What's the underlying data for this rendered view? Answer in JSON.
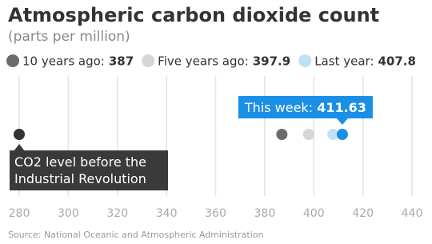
{
  "chart_data": {
    "type": "dot",
    "title": "Atmospheric carbon dioxide count",
    "subtitle": "(parts per million)",
    "source": "Source: National Oceanic and Atmospheric Administration",
    "series": [
      {
        "name": "10 years ago:",
        "color": "#6b6b6b",
        "values": [
          387
        ]
      },
      {
        "name": "Five years ago:",
        "color": "#d6d6d6",
        "values": [
          397.9
        ]
      },
      {
        "name": "Last year:",
        "color": "#bfe1f8",
        "values": [
          407.8
        ]
      }
    ],
    "highlight": {
      "name": "This week:",
      "color": "#1a8fe6",
      "values": [
        411.63
      ]
    },
    "annotation": {
      "text": "CO2 level before the Industrial Revolution",
      "color": "#333333",
      "values": [
        280
      ]
    },
    "xlim": [
      280,
      440
    ],
    "xticks": [
      280,
      300,
      320,
      340,
      360,
      380,
      400,
      420,
      440
    ],
    "grid": true
  }
}
